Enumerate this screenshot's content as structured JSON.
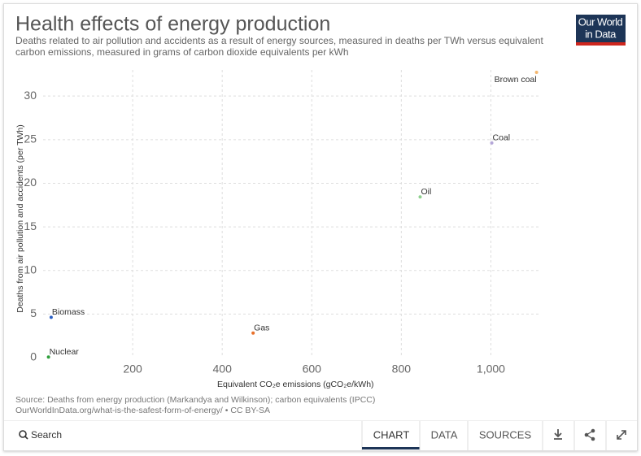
{
  "chart_data": {
    "type": "scatter",
    "title": "Health effects of energy production",
    "subtitle": "Deaths related to air pollution and accidents as a result of energy sources, measured in deaths per TWh versus equivalent carbon emissions, measured in grams of carbon dioxide equivalents per kWh",
    "x_label": "Equivalent CO₂e emissions (gCO₂e/kWh)",
    "y_label": "Deaths from air pollution and accidents (per TWh)",
    "series": [
      {
        "name": "Nuclear",
        "color": "#2e9e3a",
        "x": [
          12
        ],
        "values": [
          0.07
        ]
      },
      {
        "name": "Biomass",
        "color": "#2a5fc4",
        "x": [
          18
        ],
        "values": [
          4.63
        ]
      },
      {
        "name": "Gas",
        "color": "#e8702a",
        "x": [
          469
        ],
        "values": [
          2.82
        ]
      },
      {
        "name": "Oil",
        "color": "#8fd18f",
        "x": [
          842
        ],
        "values": [
          18.43
        ]
      },
      {
        "name": "Coal",
        "color": "#b4a6d8",
        "x": [
          1002
        ],
        "values": [
          24.62
        ]
      },
      {
        "name": "Brown coal",
        "color": "#f5b870",
        "x": [
          1102
        ],
        "values": [
          32.72
        ]
      }
    ],
    "xlim": [
      0,
      1110
    ],
    "ylim": [
      0,
      33
    ],
    "xticks": [
      200,
      400,
      600,
      800,
      {
        "value": 1000,
        "label": "1,000"
      }
    ],
    "yticks": [
      0,
      5,
      10,
      15,
      20,
      25,
      30
    ],
    "grid": true
  },
  "logo": [
    "Our World",
    "in Data"
  ],
  "source": [
    "Source: Deaths from energy production (Markandya and Wilkinson); carbon equivalents (IPCC)",
    "OurWorldInData.org/what-is-the-safest-form-of-energy/ • CC BY-SA"
  ],
  "toolbar": {
    "search": "Search",
    "tabs": [
      "CHART",
      "DATA",
      "SOURCES"
    ]
  }
}
